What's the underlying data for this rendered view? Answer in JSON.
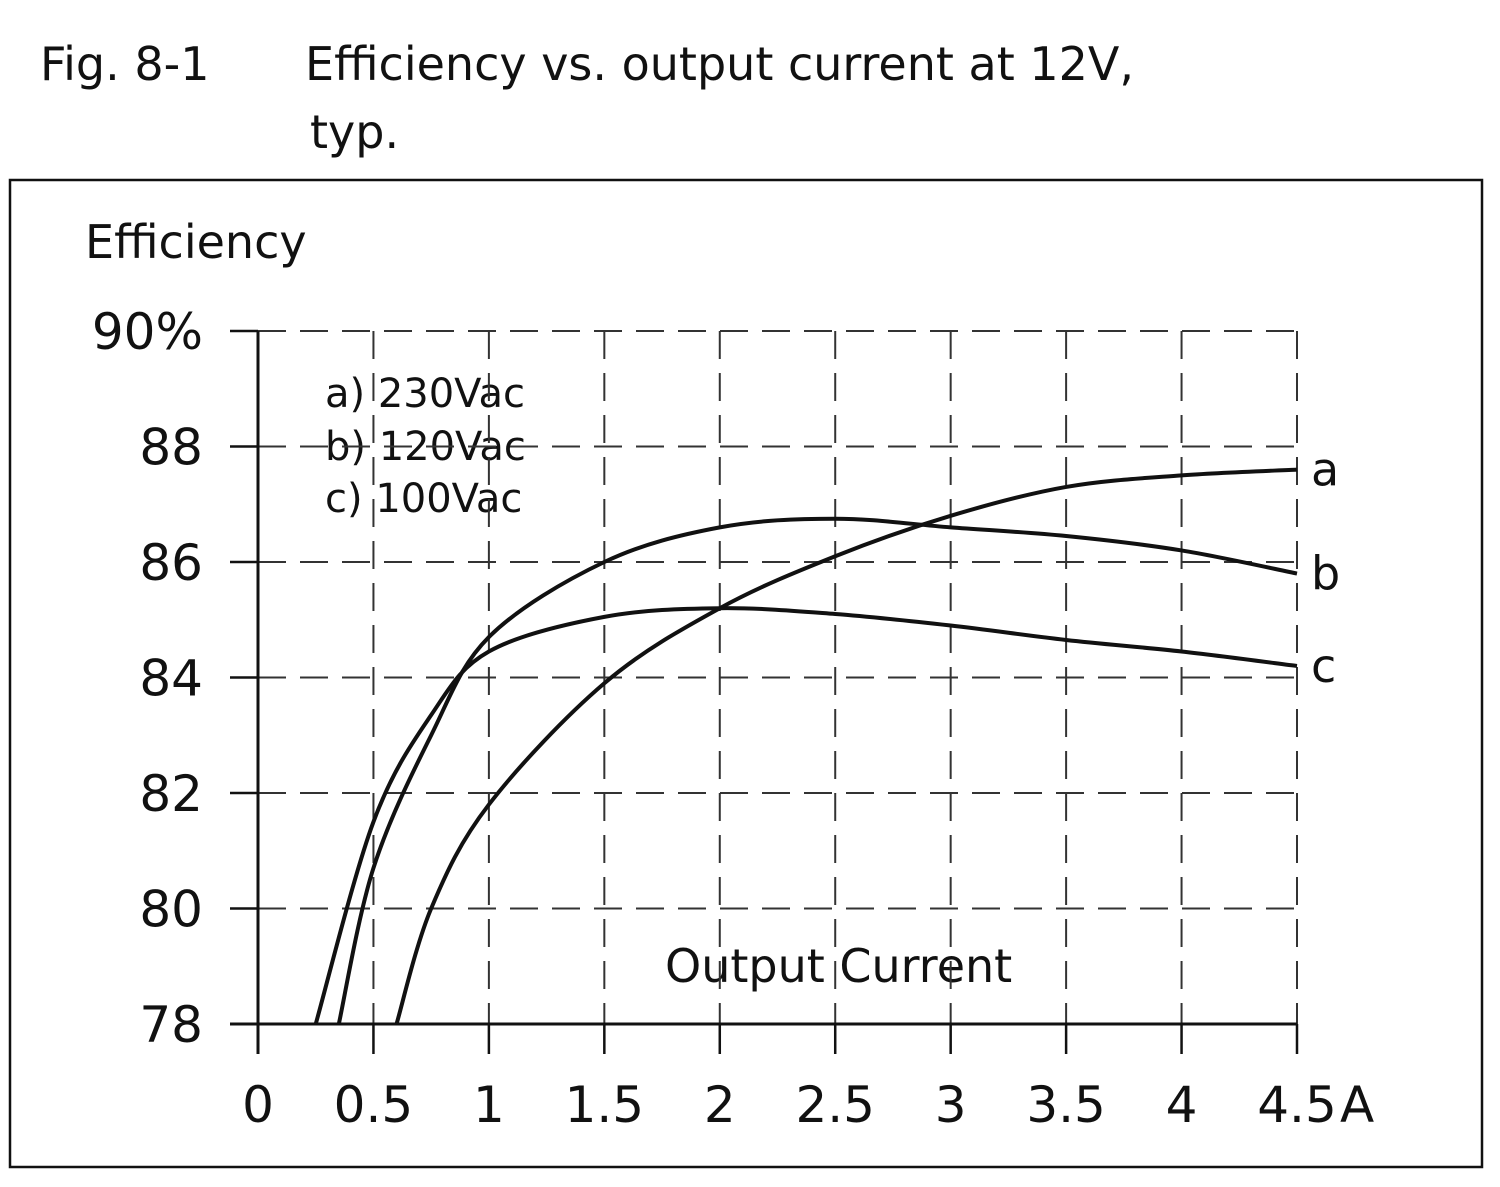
{
  "figure": {
    "number": "Fig. 8-1",
    "title_line1": "Efficiency vs. output current at 12V,",
    "title_line2": "typ."
  },
  "chart_data": {
    "type": "line",
    "title": "Efficiency vs. output current at 12V, typ.",
    "xlabel": "Output Current",
    "x_unit": "A",
    "ylabel": "Efficiency",
    "xlim": [
      0,
      4.5
    ],
    "ylim": [
      78,
      90
    ],
    "x_ticks": [
      "0",
      "0.5",
      "1",
      "1.5",
      "2",
      "2.5",
      "3",
      "3.5",
      "4",
      "4.5"
    ],
    "x_tick_values": [
      0,
      0.5,
      1,
      1.5,
      2,
      2.5,
      3,
      3.5,
      4,
      4.5
    ],
    "y_ticks": [
      "78",
      "80",
      "82",
      "84",
      "86",
      "88",
      "90%"
    ],
    "y_tick_values": [
      78,
      80,
      82,
      84,
      86,
      88,
      90
    ],
    "grid": true,
    "grid_style": "dashed",
    "legend_placement": "top-left",
    "legend": [
      "a) 230Vac",
      "b) 120Vac",
      "c) 100Vac"
    ],
    "series": [
      {
        "name": "a",
        "x": [
          0.6,
          0.75,
          1,
          1.5,
          2,
          2.5,
          3,
          3.5,
          4,
          4.5
        ],
        "y": [
          78,
          80.0,
          81.8,
          83.9,
          85.2,
          86.1,
          86.8,
          87.3,
          87.5,
          87.6
        ]
      },
      {
        "name": "b",
        "x": [
          0.35,
          0.5,
          0.75,
          1,
          1.5,
          2,
          2.5,
          3,
          3.5,
          4,
          4.5
        ],
        "y": [
          78,
          80.7,
          83.0,
          84.7,
          86.0,
          86.6,
          86.75,
          86.6,
          86.45,
          86.2,
          85.8
        ]
      },
      {
        "name": "c",
        "x": [
          0.25,
          0.5,
          0.75,
          1,
          1.5,
          2,
          2.5,
          3,
          3.5,
          4,
          4.5
        ],
        "y": [
          78,
          81.5,
          83.35,
          84.45,
          85.05,
          85.2,
          85.1,
          84.9,
          84.65,
          84.45,
          84.2
        ]
      }
    ],
    "color": "#111111"
  }
}
